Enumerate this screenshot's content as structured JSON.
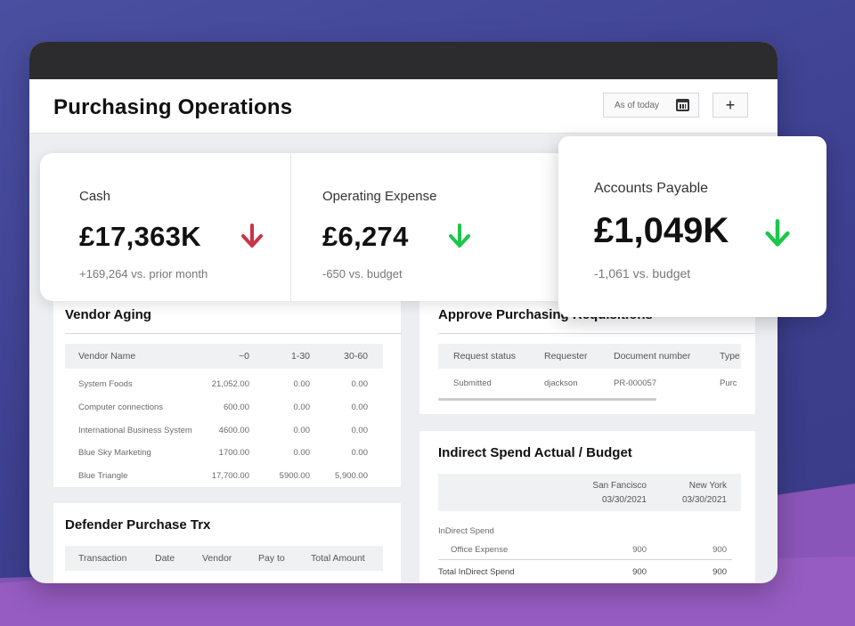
{
  "page": {
    "title": "Purchasing Operations"
  },
  "header": {
    "date_button": "As of today",
    "add_button": "+"
  },
  "colors": {
    "up_red": "#c9344a",
    "down_green": "#1ec64b"
  },
  "kpis": [
    {
      "label": "Cash",
      "value": "£17,363K",
      "sub": "+169,264 vs. prior month",
      "trend_icon": "arrow-down-icon"
    },
    {
      "label": "Operating Expense",
      "value": "£6,274",
      "sub": "-650 vs. budget",
      "trend_icon": "arrow-down-icon"
    },
    {
      "label": "Accounts Payable",
      "value": "£1,049K",
      "sub": "-1,061 vs. budget",
      "trend_icon": "arrow-down-icon"
    }
  ],
  "vendor_aging": {
    "title": "Vendor Aging",
    "columns": [
      "Vendor Name",
      "~0",
      "1-30",
      "30-60"
    ],
    "rows": [
      [
        "System Foods",
        "21,052.00",
        "0.00",
        "0.00"
      ],
      [
        "Computer connections",
        "600.00",
        "0.00",
        "0.00"
      ],
      [
        "International Business System",
        "4600.00",
        "0.00",
        "0.00"
      ],
      [
        "Blue Sky Marketing",
        "1700.00",
        "0.00",
        "0.00"
      ],
      [
        "Blue Triangle",
        "17,700.00",
        "5900.00",
        "5,900.00"
      ]
    ]
  },
  "defender": {
    "title": "Defender Purchase Trx",
    "columns": [
      "Transaction",
      "Date",
      "Vendor",
      "Pay to",
      "Total Amount"
    ]
  },
  "approve": {
    "title": "Approve Purchasing Requisitions",
    "columns": [
      "Request status",
      "Requester",
      "Document number",
      "Type"
    ],
    "rows": [
      [
        "Submitted",
        "djackson",
        "PR-000057",
        "Purc"
      ]
    ]
  },
  "indirect": {
    "title": "Indirect Spend Actual / Budget",
    "columns": [
      {
        "city": "San Fancisco",
        "date": "03/30/2021"
      },
      {
        "city": "New York",
        "date": "03/30/2021"
      }
    ],
    "group_label": "InDirect Spend",
    "rows": [
      {
        "label": "Office Expense",
        "values": [
          "900",
          "900"
        ]
      },
      {
        "label": "Total InDirect Spend",
        "values": [
          "900",
          "900"
        ]
      }
    ]
  }
}
